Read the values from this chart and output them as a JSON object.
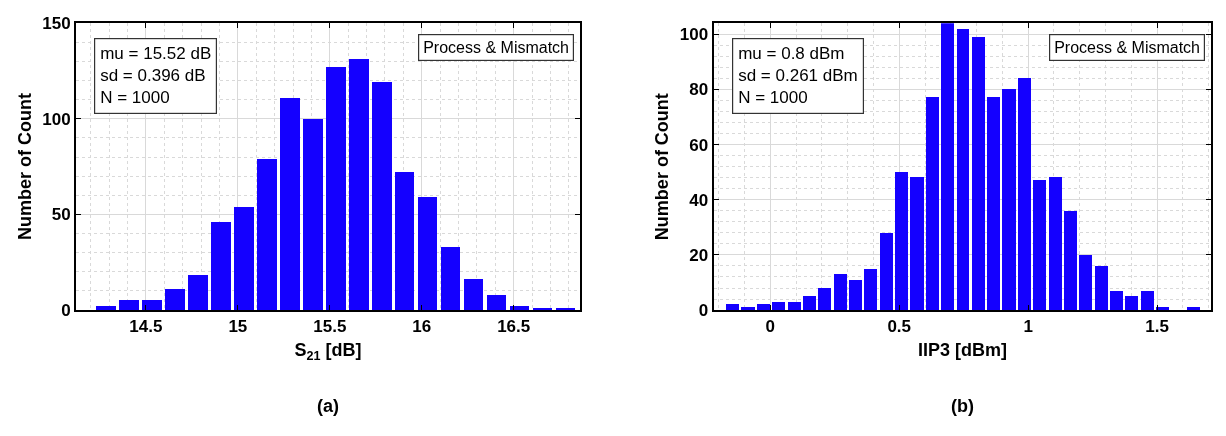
{
  "chart_data": [
    {
      "type": "histogram",
      "xlabel": "S$_{21}$ [dB]",
      "ylabel": "Number of Count",
      "bins": [
        14.22,
        14.345,
        14.47,
        14.595,
        14.72,
        14.845,
        14.97,
        15.095,
        15.22,
        15.345,
        15.47,
        15.595,
        15.72,
        15.845,
        15.97,
        16.095,
        16.22,
        16.345,
        16.47,
        16.595,
        16.72,
        16.845
      ],
      "values": [
        2,
        5,
        5,
        11,
        18,
        46,
        54,
        79,
        111,
        100,
        127,
        131,
        119,
        72,
        59,
        33,
        16,
        8,
        2,
        1,
        1
      ],
      "color": "#1400ff",
      "xlim": [
        14.12,
        16.86
      ],
      "xticks": [
        14.5,
        15,
        15.5,
        16,
        16.5
      ],
      "ylim": [
        0,
        150
      ],
      "yticks": [
        0,
        50,
        100,
        150
      ],
      "grid": true,
      "annotations": [
        "mu = 15.52 dB\nsd = 0.396 dB\nN = 1000",
        "Process & Mismatch",
        "(a)"
      ]
    },
    {
      "type": "histogram",
      "xlabel": "IIP3 [dBm]",
      "ylabel": "Number of Count",
      "bins": [
        -0.177,
        -0.118,
        -0.058,
        0.002,
        0.061,
        0.121,
        0.18,
        0.24,
        0.299,
        0.359,
        0.418,
        0.478,
        0.537,
        0.597,
        0.656,
        0.716,
        0.775,
        0.835,
        0.894,
        0.954,
        1.013,
        1.073,
        1.132,
        1.192,
        1.251,
        1.311,
        1.37,
        1.43,
        1.489,
        1.549,
        1.608,
        1.668
      ],
      "values": [
        2,
        1,
        2,
        3,
        3,
        5,
        8,
        13,
        11,
        15,
        28,
        50,
        48,
        77,
        104,
        102,
        99,
        77,
        80,
        84,
        47,
        48,
        36,
        20,
        16,
        7,
        5,
        7,
        1,
        0,
        1
      ],
      "color": "#1400ff",
      "xlim": [
        -0.22,
        1.71
      ],
      "xticks": [
        0,
        0.5,
        1,
        1.5
      ],
      "ylim": [
        0,
        104
      ],
      "yticks": [
        0,
        20,
        40,
        60,
        80,
        100
      ],
      "grid": true,
      "annotations": [
        "mu = 0.8 dBm\nsd = 0.261 dBm\nN = 1000",
        "Process & Mismatch",
        "(b)"
      ]
    }
  ]
}
